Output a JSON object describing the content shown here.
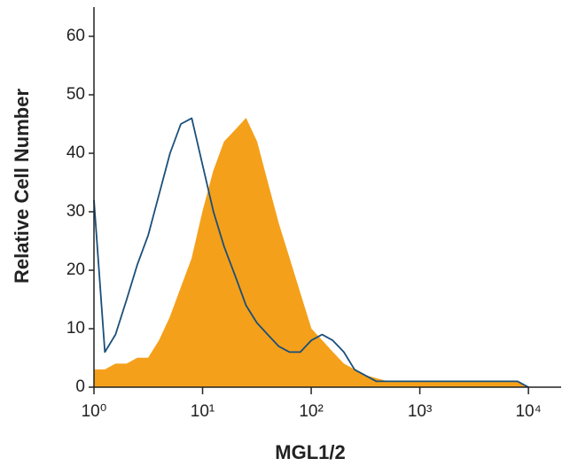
{
  "chart_data": {
    "type": "area",
    "xlabel": "MGL1/2",
    "ylabel": "Relative Cell Number",
    "xscale": "log",
    "xlim": [
      1,
      20000
    ],
    "ylim": [
      0,
      65
    ],
    "xticks": [
      {
        "value": 1,
        "label": "10⁰"
      },
      {
        "value": 10,
        "label": "10¹"
      },
      {
        "value": 100,
        "label": "10²"
      },
      {
        "value": 1000,
        "label": "10³"
      },
      {
        "value": 10000,
        "label": "10⁴"
      }
    ],
    "yticks": [
      0,
      10,
      20,
      30,
      40,
      50,
      60
    ],
    "x": [
      1,
      1.26,
      1.58,
      2,
      2.51,
      3.16,
      3.98,
      5.01,
      6.31,
      7.94,
      10,
      12.6,
      15.8,
      20,
      25.1,
      31.6,
      39.8,
      50.1,
      63.1,
      79.4,
      100,
      126,
      158,
      200,
      251,
      316,
      398,
      501,
      631,
      794,
      1000,
      1259,
      1585,
      1995,
      2512,
      3162,
      3981,
      5012,
      6310,
      7943,
      10000
    ],
    "series": [
      {
        "fill": true,
        "color": "#f5a01a",
        "values": [
          3,
          3,
          4,
          4,
          5,
          5,
          8,
          12,
          17,
          22,
          30,
          37,
          42,
          44,
          46,
          42,
          35,
          28,
          22,
          16,
          10,
          8,
          6,
          4,
          3,
          2,
          1.5,
          1,
          1,
          1,
          1,
          1,
          1,
          1,
          1,
          1,
          1,
          1,
          1,
          1,
          0
        ]
      },
      {
        "fill": false,
        "color": "#1a4f7a",
        "values": [
          32,
          6,
          9,
          15,
          21,
          26,
          33,
          40,
          45,
          46,
          38,
          30,
          24,
          19,
          14,
          11,
          9,
          7,
          6,
          6,
          8,
          9,
          8,
          6,
          3,
          2,
          1,
          1,
          1,
          1,
          1,
          1,
          1,
          1,
          1,
          1,
          1,
          1,
          1,
          1,
          0
        ]
      }
    ]
  }
}
